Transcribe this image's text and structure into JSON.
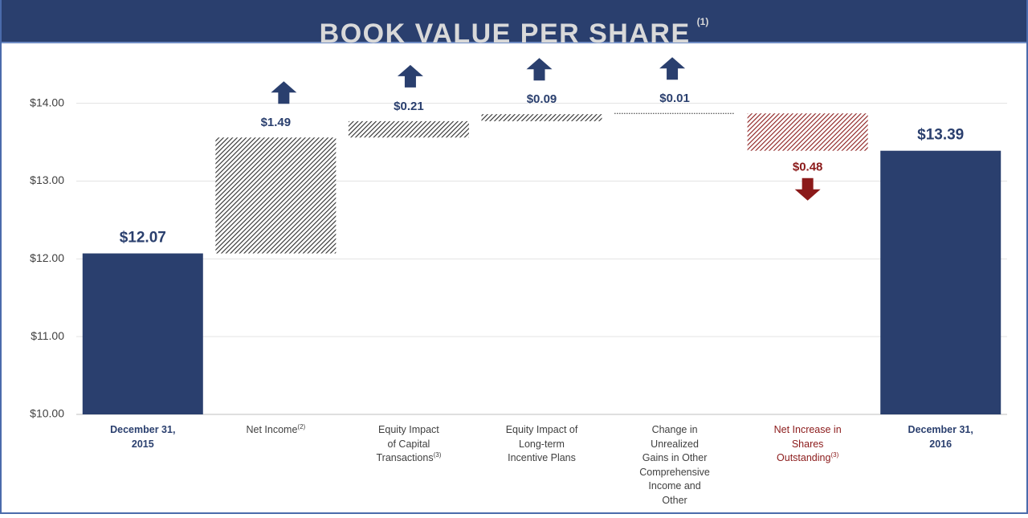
{
  "chart_data": {
    "type": "waterfall",
    "title": "BOOK VALUE PER SHARE",
    "title_footnote": "(1)",
    "categories": [
      "December 31,\n2015",
      "Net Income",
      "Equity Impact\nof Capital\nTransactions",
      "Equity Impact of\nLong-term\nIncentive  Plans",
      "Change  in\nUnrealized\nGains in Other\nComprehensive\nIncome and\nOther",
      "Net Increase  in\nShares\nOutstanding",
      "December 31,\n2016"
    ],
    "category_footnotes": [
      null,
      "(2)",
      "(3)",
      null,
      null,
      "(3)",
      null
    ],
    "measure": [
      "total",
      "relative",
      "relative",
      "relative",
      "relative",
      "relative",
      "total"
    ],
    "values": [
      12.07,
      1.49,
      0.21,
      0.09,
      0.01,
      -0.48,
      13.39
    ],
    "value_labels": [
      "$12.07",
      "$1.49",
      "$0.21",
      "$0.09",
      "$0.01",
      "$0.48",
      "$13.39"
    ],
    "total_color": "#2a3f6e",
    "increase_color": "#2b2b2b",
    "increase_arrow_color": "#2a3f6e",
    "decrease_color": "#8b1a1a",
    "ylim": [
      10,
      14.75
    ],
    "yticks": [
      {
        "value": 10,
        "label": "$10.00"
      },
      {
        "value": 11,
        "label": "$11.00"
      },
      {
        "value": 12,
        "label": "$12.00"
      },
      {
        "value": 13,
        "label": "$13.00"
      },
      {
        "value": 14,
        "label": "$14.00"
      }
    ],
    "grid": true
  }
}
